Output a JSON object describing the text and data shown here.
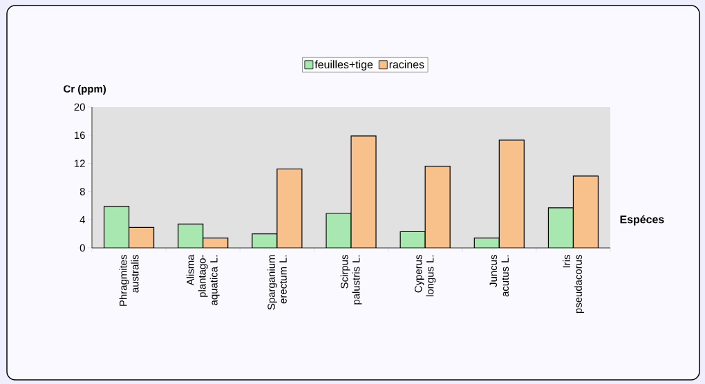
{
  "chart_data": {
    "type": "bar",
    "ylabel": "Cr (ppm)",
    "xlabel": "Espéces",
    "categories": [
      "Phragmites australis",
      "Alisma plantago-aquatica L.",
      "Sparganium erectum L.",
      "Scirpus palustris L.",
      "Cyperus longus L.",
      "Juncus acutus L.",
      "Iris pseudacorus"
    ],
    "series": [
      {
        "name": "feuilles+tige",
        "color": "#a8e8b0",
        "values": [
          5.9,
          3.4,
          2.0,
          4.9,
          2.3,
          1.4,
          5.7
        ]
      },
      {
        "name": "racines",
        "color": "#f8c08a",
        "values": [
          2.9,
          1.4,
          11.2,
          15.9,
          11.6,
          15.3,
          10.2
        ]
      }
    ],
    "ylim": [
      0,
      20
    ],
    "yticks": [
      0,
      4,
      8,
      12,
      16,
      20
    ],
    "legend": "top",
    "grid": false
  }
}
